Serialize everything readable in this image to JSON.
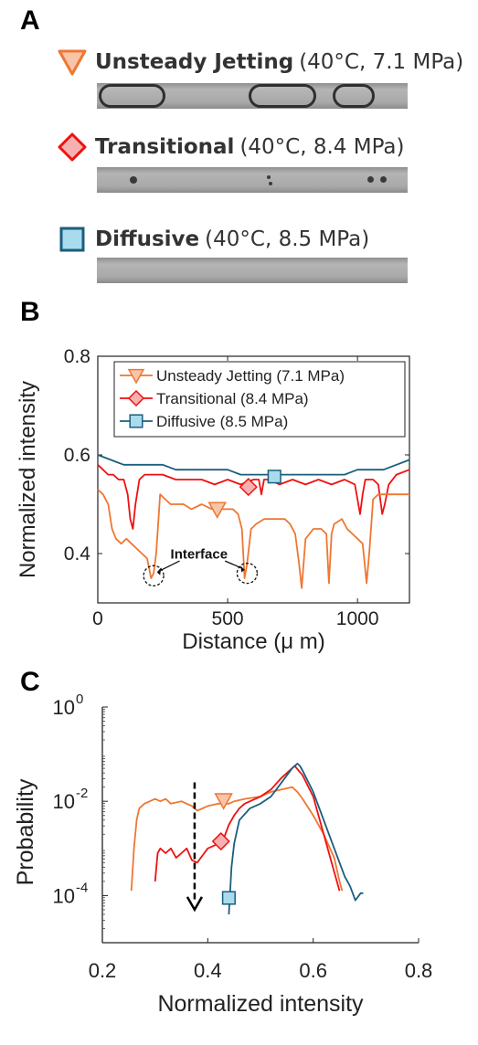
{
  "panelA": {
    "letter": "A",
    "regimes": [
      {
        "name": "Unsteady Jetting",
        "conditions": "(40°C, 7.1 MPa)",
        "marker": "triangle-down-icon",
        "color": "#ee7733",
        "fill": "#f7c5a8"
      },
      {
        "name": "Transitional",
        "conditions": "(40°C, 8.4 MPa)",
        "marker": "diamond-icon",
        "color": "#ee1111",
        "fill": "#f7b0b0"
      },
      {
        "name": "Diffusive",
        "conditions": "(40°C, 8.5 MPa)",
        "marker": "square-icon",
        "color": "#1b5e7e",
        "fill": "#a8dcec"
      }
    ]
  },
  "panelB": {
    "letter": "B",
    "annotation": "Interface",
    "chart_data": {
      "type": "line",
      "xlabel": "Distance (μ m)",
      "ylabel": "Normalized intensity",
      "xlim": [
        0,
        1200
      ],
      "ylim": [
        0.3,
        0.8
      ],
      "xticks": [
        "0",
        "500",
        "1000"
      ],
      "yticks": [
        "0.4",
        "0.6",
        "0.8"
      ],
      "legend_position": "top",
      "series": [
        {
          "name": "Unsteady Jetting (7.1 MPa)",
          "color": "#ee7733",
          "x": [
            0,
            20,
            40,
            55,
            70,
            90,
            110,
            130,
            150,
            170,
            190,
            205,
            215,
            225,
            240,
            260,
            280,
            300,
            330,
            360,
            400,
            440,
            480,
            520,
            540,
            555,
            565,
            575,
            590,
            610,
            640,
            680,
            720,
            740,
            760,
            775,
            785,
            800,
            830,
            860,
            880,
            890,
            900,
            910,
            940,
            960,
            980,
            1000,
            1020,
            1035,
            1045,
            1060,
            1080,
            1100,
            1130,
            1160,
            1200
          ],
          "y": [
            0.53,
            0.52,
            0.5,
            0.45,
            0.43,
            0.42,
            0.43,
            0.42,
            0.41,
            0.4,
            0.39,
            0.35,
            0.36,
            0.4,
            0.52,
            0.51,
            0.5,
            0.5,
            0.5,
            0.49,
            0.5,
            0.49,
            0.49,
            0.49,
            0.48,
            0.45,
            0.35,
            0.38,
            0.45,
            0.46,
            0.47,
            0.47,
            0.47,
            0.46,
            0.44,
            0.38,
            0.33,
            0.43,
            0.45,
            0.45,
            0.44,
            0.34,
            0.44,
            0.46,
            0.47,
            0.45,
            0.44,
            0.43,
            0.42,
            0.34,
            0.4,
            0.51,
            0.52,
            0.52,
            0.52,
            0.52,
            0.52
          ]
        },
        {
          "name": "Transitional (8.4 MPa)",
          "color": "#ee1111",
          "x": [
            0,
            20,
            40,
            60,
            80,
            100,
            115,
            125,
            135,
            145,
            160,
            180,
            200,
            250,
            300,
            350,
            400,
            450,
            500,
            550,
            600,
            620,
            630,
            640,
            660,
            700,
            750,
            800,
            850,
            900,
            950,
            990,
            1010,
            1020,
            1030,
            1040,
            1060,
            1080,
            1095,
            1105,
            1120,
            1150,
            1200
          ],
          "y": [
            0.58,
            0.57,
            0.56,
            0.56,
            0.55,
            0.55,
            0.52,
            0.47,
            0.45,
            0.5,
            0.55,
            0.56,
            0.56,
            0.56,
            0.55,
            0.55,
            0.55,
            0.54,
            0.55,
            0.54,
            0.55,
            0.55,
            0.52,
            0.55,
            0.55,
            0.54,
            0.55,
            0.54,
            0.55,
            0.54,
            0.55,
            0.54,
            0.48,
            0.52,
            0.55,
            0.55,
            0.55,
            0.54,
            0.48,
            0.5,
            0.54,
            0.56,
            0.57
          ]
        },
        {
          "name": "Diffusive (8.5 MPa)",
          "color": "#1b5e7e",
          "x": [
            0,
            50,
            100,
            150,
            200,
            250,
            300,
            350,
            400,
            450,
            500,
            550,
            600,
            650,
            700,
            750,
            800,
            850,
            900,
            950,
            1000,
            1050,
            1100,
            1150,
            1200
          ],
          "y": [
            0.6,
            0.59,
            0.58,
            0.58,
            0.58,
            0.58,
            0.57,
            0.57,
            0.57,
            0.57,
            0.57,
            0.56,
            0.56,
            0.56,
            0.56,
            0.56,
            0.56,
            0.56,
            0.56,
            0.56,
            0.57,
            0.57,
            0.57,
            0.58,
            0.59
          ]
        }
      ]
    }
  },
  "panelC": {
    "letter": "C",
    "chart_data": {
      "type": "line",
      "xlabel": "Normalized intensity",
      "ylabel": "Probability",
      "xlim": [
        0.2,
        0.8
      ],
      "ylim_log10": [
        -5,
        0
      ],
      "yscale": "log",
      "xticks": [
        "0.2",
        "0.4",
        "0.6",
        "0.8"
      ],
      "yticks": [
        {
          "base": "10",
          "exp": "0"
        },
        {
          "base": "10",
          "exp": "-2"
        },
        {
          "base": "10",
          "exp": "-4"
        }
      ],
      "arrow": {
        "x": 0.375,
        "from_log10": -1.6,
        "to_log10": -4.3
      },
      "series": [
        {
          "name": "Unsteady Jetting",
          "color": "#ee7733",
          "x": [
            0.255,
            0.26,
            0.265,
            0.27,
            0.28,
            0.29,
            0.3,
            0.31,
            0.32,
            0.33,
            0.35,
            0.37,
            0.38,
            0.4,
            0.42,
            0.44,
            0.45,
            0.47,
            0.5,
            0.52,
            0.54,
            0.56,
            0.57,
            0.58,
            0.6,
            0.62,
            0.64,
            0.65,
            0.655
          ],
          "ylog10": [
            -3.9,
            -3.0,
            -2.4,
            -2.15,
            -2.05,
            -2.0,
            -1.95,
            -2.0,
            -1.95,
            -2.05,
            -2.0,
            -2.1,
            -2.2,
            -2.1,
            -2.05,
            -2.05,
            -2.0,
            -1.95,
            -1.9,
            -1.8,
            -1.75,
            -1.7,
            -1.8,
            -1.95,
            -2.3,
            -2.7,
            -3.2,
            -3.7,
            -3.9
          ]
        },
        {
          "name": "Transitional",
          "color": "#ee1111",
          "x": [
            0.3,
            0.305,
            0.31,
            0.32,
            0.33,
            0.34,
            0.35,
            0.36,
            0.37,
            0.38,
            0.39,
            0.4,
            0.41,
            0.42,
            0.43,
            0.44,
            0.45,
            0.46,
            0.47,
            0.48,
            0.5,
            0.52,
            0.54,
            0.56,
            0.565,
            0.58,
            0.6,
            0.62,
            0.64,
            0.65
          ],
          "ylog10": [
            -3.7,
            -3.1,
            -3.0,
            -3.1,
            -3.0,
            -3.2,
            -3.1,
            -3.0,
            -3.25,
            -3.3,
            -3.15,
            -3.0,
            -2.95,
            -2.9,
            -2.8,
            -2.5,
            -2.3,
            -2.15,
            -2.05,
            -2.0,
            -1.9,
            -1.75,
            -1.5,
            -1.3,
            -1.25,
            -1.45,
            -1.9,
            -2.7,
            -3.5,
            -3.9
          ]
        },
        {
          "name": "Diffusive",
          "color": "#1b5e7e",
          "x": [
            0.44,
            0.445,
            0.45,
            0.46,
            0.48,
            0.5,
            0.52,
            0.54,
            0.56,
            0.57,
            0.575,
            0.58,
            0.6,
            0.62,
            0.64,
            0.65,
            0.66,
            0.67,
            0.68,
            0.69,
            0.695
          ],
          "ylog10": [
            -4.4,
            -3.4,
            -2.9,
            -2.4,
            -2.15,
            -2.05,
            -1.9,
            -1.6,
            -1.3,
            -1.2,
            -1.25,
            -1.35,
            -1.8,
            -2.4,
            -3.0,
            -3.3,
            -3.6,
            -3.8,
            -4.1,
            -3.95,
            -3.95
          ]
        }
      ]
    }
  }
}
